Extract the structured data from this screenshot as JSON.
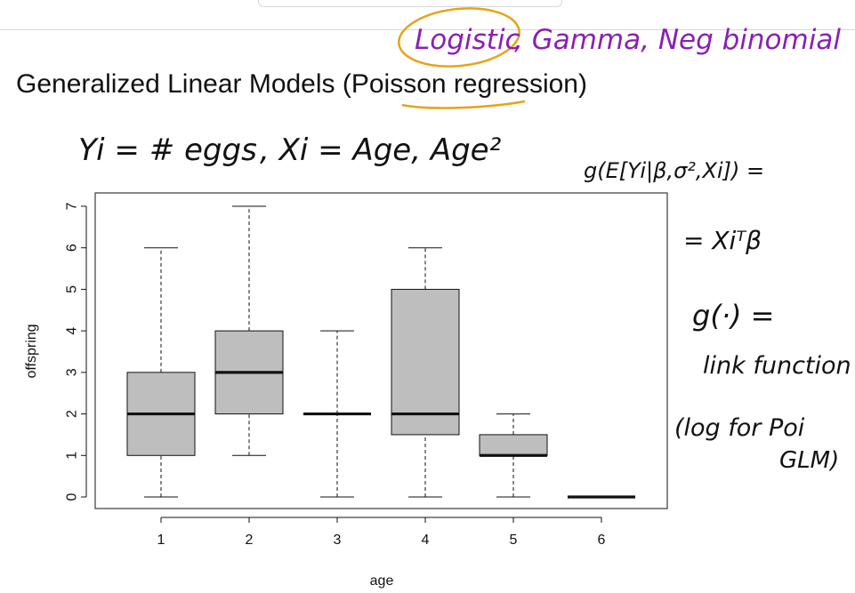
{
  "slide": {
    "title": "Generalized Linear Models (Poisson regression)"
  },
  "annotations": {
    "logistic": "Logistic",
    "other_models": ", Gamma, Neg binomial",
    "response_def": "Yi = # eggs",
    "covariates_def": ", Xi = Age, Age²",
    "glm_lhs": "g(E[Yi|β,σ²,Xi]) =",
    "glm_rhs": "= Xiᵀβ",
    "link_symbol": "g(·) =",
    "link_name": "link function",
    "link_note_1": "(log for Poi",
    "link_note_2": "GLM)",
    "ink_purple": "#8a1fb5",
    "ink_orange": "#e8a21a",
    "ink_black": "#111111"
  },
  "chart_data": {
    "type": "boxplot",
    "xlabel": "age",
    "ylabel": "offspring",
    "ylim": [
      0,
      7
    ],
    "yticks": [
      "0",
      "1",
      "2",
      "3",
      "4",
      "5",
      "6",
      "7"
    ],
    "categories": [
      "1",
      "2",
      "3",
      "4",
      "5",
      "6"
    ],
    "boxes": [
      {
        "category": "1",
        "min": 0,
        "q1": 1,
        "median": 2,
        "q3": 3,
        "max": 6
      },
      {
        "category": "2",
        "min": 1,
        "q1": 2,
        "median": 3,
        "q3": 4,
        "max": 7
      },
      {
        "category": "3",
        "min": 0,
        "q1": 2,
        "median": 2,
        "q3": 2,
        "max": 4
      },
      {
        "category": "4",
        "min": 0,
        "q1": 1.5,
        "median": 2,
        "q3": 5,
        "max": 6
      },
      {
        "category": "5",
        "min": 0,
        "q1": 1,
        "median": 1,
        "q3": 1.5,
        "max": 2
      },
      {
        "category": "6",
        "min": 0,
        "q1": 0,
        "median": 0,
        "q3": 0,
        "max": 0
      }
    ],
    "box_fill": "#bebebe",
    "grid": false
  }
}
